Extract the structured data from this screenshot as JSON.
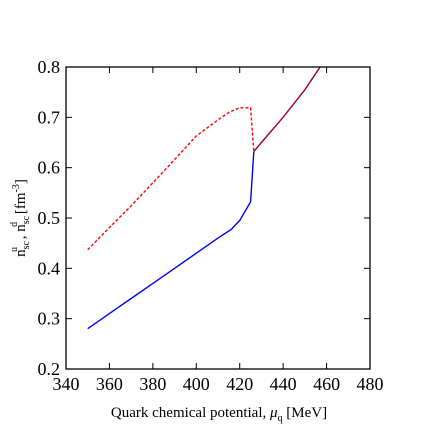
{
  "chart_data": {
    "type": "line",
    "xlabel": {
      "text": "Quark chemical potential, ",
      "symbol": "μ",
      "subscript": "q",
      "unit": " [MeV]"
    },
    "ylabel": {
      "n1": "n",
      "n1_sub": "sc",
      "n1_sup": "u",
      "sep": " , ",
      "n2": "n",
      "n2_sub": "sc",
      "n2_sup": "d",
      "unit_open": " [fm",
      "unit_sup": "-3",
      "unit_close": "]"
    },
    "xlim": [
      340,
      480
    ],
    "ylim": [
      0.2,
      0.8
    ],
    "xticks": [
      340,
      360,
      380,
      400,
      420,
      440,
      460,
      480
    ],
    "yticks": [
      0.2,
      0.3,
      0.4,
      0.5,
      0.6,
      0.7,
      0.8
    ],
    "grid": false,
    "series": [
      {
        "color": "#ff0000",
        "style": "dashed",
        "x": [
          350,
          360,
          370,
          380,
          390,
          400,
          410,
          415,
          420,
          425,
          426.5
        ],
        "y": [
          0.437,
          0.481,
          0.524,
          0.57,
          0.616,
          0.663,
          0.695,
          0.71,
          0.719,
          0.719,
          0.632
        ]
      },
      {
        "color": "#0000ff",
        "style": "solid",
        "x": [
          350,
          360,
          370,
          380,
          390,
          400,
          410,
          416,
          420,
          425,
          426.5
        ],
        "y": [
          0.28,
          0.31,
          0.34,
          0.37,
          0.4,
          0.43,
          0.46,
          0.477,
          0.495,
          0.532,
          0.632
        ]
      },
      {
        "color": "#a0002a",
        "style": "solid",
        "x": [
          426.5,
          430,
          440,
          450,
          457
        ],
        "y": [
          0.632,
          0.65,
          0.7,
          0.755,
          0.8
        ]
      }
    ]
  }
}
